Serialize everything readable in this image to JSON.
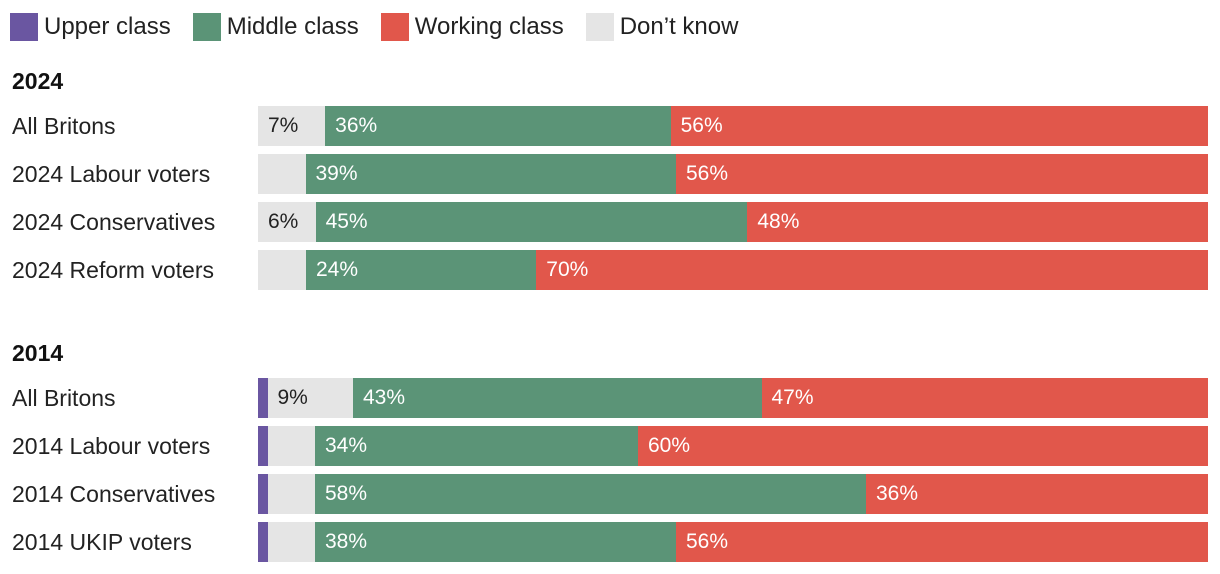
{
  "colors": {
    "upper": "#6a56a1",
    "middle": "#5b9477",
    "working": "#e1574b",
    "dontknow": "#e5e5e5"
  },
  "chart_data": {
    "type": "bar",
    "orientation": "horizontal",
    "stacked": true,
    "legend": {
      "placement": "top-left",
      "entries": [
        {
          "key": "upper",
          "label": "Upper class"
        },
        {
          "key": "middle",
          "label": "Middle class"
        },
        {
          "key": "working",
          "label": "Working class"
        },
        {
          "key": "dontknow",
          "label": "Don’t know"
        }
      ]
    },
    "segment_order": [
      "upper",
      "dontknow",
      "middle",
      "working"
    ],
    "groups": [
      {
        "title": "2024",
        "rows": [
          {
            "label": "All Britons",
            "values": {
              "upper": 0,
              "dontknow": 7,
              "middle": 36,
              "working": 56
            },
            "labels": {
              "dontknow": "7%",
              "middle": "36%",
              "working": "56%"
            }
          },
          {
            "label": "2024 Labour voters",
            "values": {
              "upper": 0,
              "dontknow": 5,
              "middle": 39,
              "working": 56
            },
            "labels": {
              "middle": "39%",
              "working": "56%"
            }
          },
          {
            "label": "2024 Conservatives",
            "values": {
              "upper": 0,
              "dontknow": 6,
              "middle": 45,
              "working": 48
            },
            "labels": {
              "dontknow": "6%",
              "middle": "45%",
              "working": "48%"
            }
          },
          {
            "label": "2024 Reform voters",
            "values": {
              "upper": 0,
              "dontknow": 5,
              "middle": 24,
              "working": 70
            },
            "labels": {
              "middle": "24%",
              "working": "70%"
            }
          }
        ]
      },
      {
        "title": "2014",
        "rows": [
          {
            "label": "All Britons",
            "values": {
              "upper": 1,
              "dontknow": 9,
              "middle": 43,
              "working": 47
            },
            "labels": {
              "dontknow": "9%",
              "middle": "43%",
              "working": "47%"
            }
          },
          {
            "label": "2014 Labour voters",
            "values": {
              "upper": 1,
              "dontknow": 5,
              "middle": 34,
              "working": 60
            },
            "labels": {
              "middle": "34%",
              "working": "60%"
            }
          },
          {
            "label": "2014 Conservatives",
            "values": {
              "upper": 1,
              "dontknow": 5,
              "middle": 58,
              "working": 36
            },
            "labels": {
              "middle": "58%",
              "working": "36%"
            }
          },
          {
            "label": "2014 UKIP voters",
            "values": {
              "upper": 1,
              "dontknow": 5,
              "middle": 38,
              "working": 56
            },
            "labels": {
              "middle": "38%",
              "working": "56%"
            }
          }
        ]
      }
    ]
  }
}
